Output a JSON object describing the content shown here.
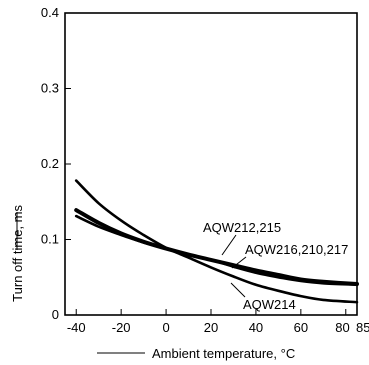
{
  "chart_data": {
    "type": "line",
    "title": "",
    "xlabel": "Ambient temperature, °C",
    "ylabel": "Turn off time, ms",
    "xlim": [
      -45,
      85
    ],
    "ylim": [
      0,
      0.4
    ],
    "x_ticks": [
      -40,
      -20,
      0,
      20,
      40,
      60,
      80,
      85
    ],
    "x_tick_labels": [
      "-40",
      "-20",
      "0",
      "20",
      "40",
      "60",
      "80",
      "85"
    ],
    "y_ticks": [
      0,
      0.1,
      0.2,
      0.3,
      0.4
    ],
    "y_tick_labels": [
      "0",
      "0.1",
      "0.2",
      "0.3",
      "0.4"
    ],
    "grid": false,
    "series": [
      {
        "name": "AQW212,215",
        "x": [
          -40,
          -30,
          -20,
          -10,
          0,
          10,
          20,
          30,
          40,
          50,
          60,
          70,
          85
        ],
        "y": [
          0.131,
          0.117,
          0.106,
          0.096,
          0.088,
          0.08,
          0.073,
          0.064,
          0.056,
          0.05,
          0.045,
          0.042,
          0.04
        ]
      },
      {
        "name": "AQW216,210,217",
        "x": [
          -40,
          -30,
          -20,
          -10,
          0,
          10,
          20,
          30,
          40,
          50,
          60,
          70,
          85
        ],
        "y": [
          0.139,
          0.122,
          0.108,
          0.097,
          0.088,
          0.08,
          0.073,
          0.066,
          0.059,
          0.053,
          0.047,
          0.044,
          0.041
        ]
      },
      {
        "name": "AQW214",
        "x": [
          -40,
          -30,
          -20,
          -10,
          0,
          10,
          20,
          30,
          40,
          50,
          60,
          70,
          85
        ],
        "y": [
          0.178,
          0.148,
          0.125,
          0.106,
          0.089,
          0.076,
          0.063,
          0.051,
          0.04,
          0.032,
          0.025,
          0.02,
          0.017
        ]
      }
    ],
    "annotations": [
      {
        "text": "AQW212,215",
        "series": 0
      },
      {
        "text": "AQW216,210,217",
        "series": 1
      },
      {
        "text": "AQW214",
        "series": 2
      }
    ]
  }
}
